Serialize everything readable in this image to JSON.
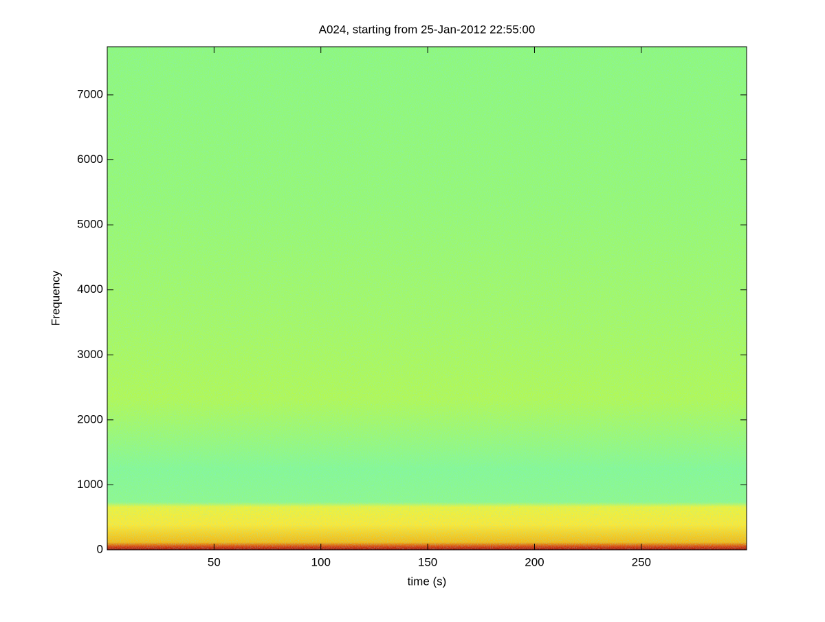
{
  "chart_data": {
    "type": "spectrogram",
    "title": "A024, starting from 25-Jan-2012 22:55:00",
    "xlabel": "time (s)",
    "ylabel": "Frequency",
    "xlim": [
      0,
      299.3
    ],
    "xticks": [
      50,
      100,
      150,
      200,
      250
    ],
    "ylim": [
      0,
      7740
    ],
    "yticks": [
      0,
      1000,
      2000,
      3000,
      4000,
      5000,
      6000,
      7000
    ],
    "colormap": "jet"
  }
}
